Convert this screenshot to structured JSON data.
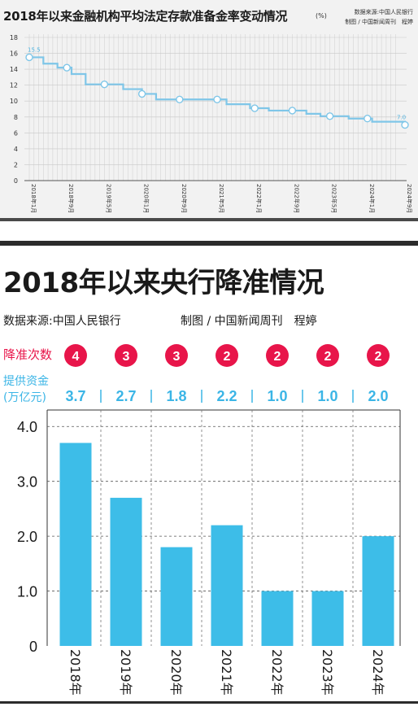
{
  "panel1": {
    "title": "2018年以来金融机构平均法定存款准备金率变动情况",
    "unit": "(%)",
    "source": "数据来源:中国人民银行",
    "credit": "制图 / 中国新闻周刊　程婷"
  },
  "panel2": {
    "title": "2018年以来央行降准情况",
    "source": "数据来源:中国人民银行",
    "credit": "制图 / 中国新闻周刊　程婷",
    "cuts_label": "降准次数",
    "funds_label_line1": "提供资金",
    "funds_label_line2": "(万亿元)"
  },
  "colors": {
    "line": "#7fc6e8",
    "bar": "#3dbde8",
    "badge": "#e8154a",
    "funds_text": "#3bb5e6"
  },
  "chart_data": [
    {
      "type": "line",
      "title": "2018年以来金融机构平均法定存款准备金率变动情况",
      "ylabel": "(%)",
      "ylim": [
        0,
        18
      ],
      "yticks": [
        0,
        2,
        4,
        6,
        8,
        10,
        12,
        14,
        16,
        18
      ],
      "xticks": [
        "2018年1月",
        "2018年9月",
        "2019年5月",
        "2020年1月",
        "2020年9月",
        "2021年5月",
        "2022年1月",
        "2022年9月",
        "2023年5月",
        "2024年1月",
        "2024年9月"
      ],
      "first_label": "15.5",
      "last_label": "7.0",
      "grid": true,
      "series": [
        {
          "x": [
            "2018-01",
            "2018-04",
            "2018-07",
            "2018-10",
            "2019-01",
            "2019-09",
            "2020-01",
            "2020-04",
            "2021-07",
            "2021-12",
            "2022-04",
            "2022-12",
            "2023-03",
            "2023-09",
            "2024-02",
            "2024-09"
          ],
          "values": [
            15.5,
            14.7,
            14.2,
            13.4,
            12.1,
            11.5,
            10.9,
            10.2,
            9.6,
            9.1,
            8.8,
            8.4,
            8.1,
            7.8,
            7.4,
            7.0
          ]
        }
      ]
    },
    {
      "type": "bar",
      "title": "2018年以来央行降准情况",
      "categories": [
        "2018年",
        "2019年",
        "2020年",
        "2021年",
        "2022年",
        "2023年",
        "2024年"
      ],
      "values": [
        3.7,
        2.7,
        1.8,
        2.2,
        1.0,
        1.0,
        2.0
      ],
      "value_labels": [
        "3.7",
        "2.7",
        "1.8",
        "2.2",
        "1.0",
        "1.0",
        "2.0"
      ],
      "cut_counts": [
        "4",
        "3",
        "3",
        "2",
        "2",
        "2",
        "2"
      ],
      "yticks": [
        "0",
        "1.0",
        "2.0",
        "3.0",
        "4.0"
      ],
      "ylim": [
        0,
        4.3
      ],
      "grid": true
    }
  ]
}
